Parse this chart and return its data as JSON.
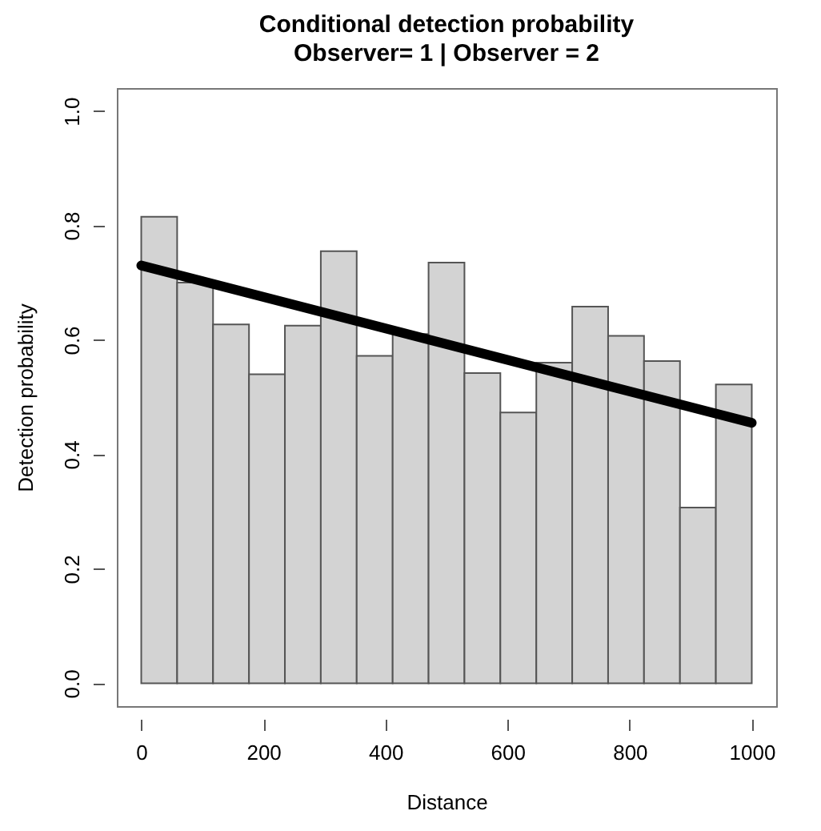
{
  "chart_data": {
    "type": "histogram",
    "title": "Conditional detection probability",
    "subtitle": "Observer= 1  | Observer =  2",
    "xlabel": "Distance",
    "ylabel": "Detection probability",
    "bins": [
      0,
      58.8,
      117.6,
      176.5,
      235.3,
      294.1,
      352.9,
      411.8,
      470.6,
      529.4,
      588.2,
      647.1,
      705.9,
      764.7,
      823.5,
      882.4,
      941.2,
      1000
    ],
    "values": [
      0.815,
      0.7,
      0.627,
      0.54,
      0.625,
      0.755,
      0.572,
      0.61,
      0.735,
      0.542,
      0.473,
      0.56,
      0.658,
      0.607,
      0.563,
      0.307,
      0.522
    ],
    "color": "#d3d3d3",
    "series": [
      {
        "type": "line",
        "color": "#000000",
        "x": [
          0,
          1000
        ],
        "values": [
          0.73,
          0.455
        ]
      }
    ],
    "xlim": [
      -40,
      1040
    ],
    "ylim": [
      -0.04,
      1.04
    ],
    "xticks": [
      0,
      200,
      400,
      600,
      800,
      1000
    ],
    "yticks": [
      {
        "value": 0,
        "label": "0.0"
      },
      {
        "value": 0.2,
        "label": "0.2"
      },
      {
        "value": 0.4,
        "label": "0.4"
      },
      {
        "value": 0.6,
        "label": "0.6"
      },
      {
        "value": 0.8,
        "label": "0.8"
      },
      {
        "value": 1,
        "label": "1.0"
      }
    ],
    "grid": false
  }
}
